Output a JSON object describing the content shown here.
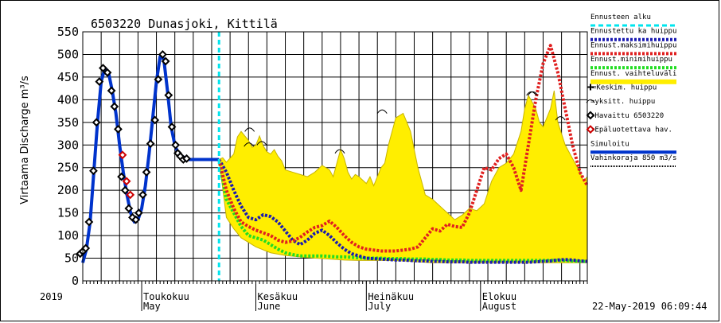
{
  "chart_data": {
    "type": "line",
    "title": "6503220 Dunasjoki, Kittilä",
    "ylabel": "Virtaama Discharge m³/s",
    "ylim": [
      0,
      550
    ],
    "yticks": [
      0,
      50,
      100,
      150,
      200,
      250,
      300,
      350,
      400,
      450,
      500,
      550
    ],
    "x_unit": "day-of-year 2019",
    "xlim": [
      105,
      242
    ],
    "year_label": "2019",
    "month_labels": [
      {
        "fi": "Toukokuu",
        "en": "May",
        "day": 121
      },
      {
        "fi": "Kesäkuu",
        "en": "June",
        "day": 152
      },
      {
        "fi": "Heinäkuu",
        "en": "July",
        "day": 182
      },
      {
        "fi": "Elokuu",
        "en": "August",
        "day": 213
      }
    ],
    "timestamp": "22-May-2019 06:09:44",
    "forecast_start_day": 142,
    "grid": true,
    "legend_position": "right",
    "colors": {
      "forecast_start": "#00e5ee",
      "forecast_mean": "#1a1ab0",
      "forecast_max": "#e02020",
      "forecast_min": "#22dd22",
      "range": "#ffee00",
      "range_edge": "#c8b400",
      "simulated": "#0033cc",
      "observed": "#000000",
      "unreliable": "#cc0000",
      "damage_limit": "#000000"
    },
    "legend": [
      {
        "key": "forecast_start",
        "label": "Ennusteen alku"
      },
      {
        "key": "forecast_mean",
        "label": "Ennustettu ka huippu"
      },
      {
        "key": "forecast_max",
        "label": "Ennust.maksimihuippu"
      },
      {
        "key": "forecast_min",
        "label": "Ennust.minimihuippu"
      },
      {
        "key": "range",
        "label": "Ennust. vaihteluväli"
      },
      {
        "key": "mean_peak",
        "label": "=Keskim. huippu"
      },
      {
        "key": "single_peak",
        "label": "=yksitt. huippu"
      },
      {
        "key": "observed",
        "label": "=Havaittu 6503220"
      },
      {
        "key": "unreliable",
        "label": "=Epäluotettava hav."
      },
      {
        "key": "simulated",
        "label": "Simuloitu"
      },
      {
        "key": "damage_limit",
        "label": "Vahinkoraja 850 m3/s"
      }
    ],
    "series": [
      {
        "name": "Simuloitu",
        "key": "simulated",
        "x": [
          105,
          106,
          107,
          108,
          109,
          110,
          111,
          112,
          113,
          114,
          115,
          116,
          117,
          118,
          119,
          120,
          121,
          122,
          123,
          124,
          125,
          126,
          127,
          128,
          129,
          130,
          131,
          132,
          133,
          134,
          135,
          136,
          137,
          138,
          139,
          140,
          141,
          142
        ],
        "y": [
          40,
          70,
          130,
          240,
          350,
          440,
          470,
          460,
          420,
          370,
          300,
          240,
          190,
          150,
          130,
          135,
          160,
          210,
          280,
          360,
          440,
          495,
          490,
          420,
          340,
          300,
          280,
          275,
          270,
          268,
          268,
          268,
          268,
          268,
          268,
          268,
          268,
          268
        ]
      },
      {
        "name": "=Havaittu 6503220",
        "key": "observed",
        "x": [
          104.3,
          105,
          105.8,
          106.7,
          107.9,
          108.7,
          109.5,
          110.5,
          111.7,
          112.8,
          113.6,
          114.6,
          115.5,
          116.5,
          117.5,
          118.5,
          119.4,
          120.2,
          121.3,
          122.3,
          123.4,
          124.6,
          125.5,
          126.7,
          127.5,
          128.3,
          129.2,
          130.2,
          130.8,
          131.5,
          132.3,
          133.2
        ],
        "y": [
          60,
          65,
          72,
          130,
          243,
          350,
          440,
          470,
          460,
          420,
          385,
          335,
          230,
          200,
          160,
          140,
          135,
          150,
          190,
          240,
          303,
          355,
          445,
          500,
          485,
          410,
          340,
          300,
          282,
          275,
          268,
          270
        ]
      },
      {
        "name": "=Epäluotettava hav.",
        "key": "unreliable",
        "x": [
          115.8,
          116.9,
          117.9
        ],
        "y": [
          278,
          220,
          190
        ]
      },
      {
        "name": "Ennustettu ka huippu",
        "key": "forecast_mean",
        "x": [
          142,
          144,
          146,
          148,
          150,
          152,
          154,
          156,
          158,
          160,
          162,
          164,
          166,
          168,
          170,
          172,
          174,
          176,
          178,
          180,
          182,
          184,
          186,
          188,
          190,
          192,
          194,
          196,
          198,
          200,
          202,
          204,
          206,
          208,
          210,
          212,
          214,
          216,
          218,
          220,
          222,
          224,
          226,
          228,
          230,
          232,
          234,
          236,
          238,
          240,
          242
        ],
        "y": [
          268,
          240,
          200,
          165,
          140,
          135,
          146,
          142,
          130,
          110,
          90,
          80,
          90,
          105,
          112,
          100,
          84,
          70,
          60,
          55,
          50,
          49,
          48,
          47,
          46,
          46,
          45,
          44,
          44,
          43,
          43,
          42,
          42,
          42,
          41,
          41,
          41,
          41,
          41,
          41,
          41,
          41,
          41,
          42,
          43,
          44,
          46,
          47,
          46,
          44,
          43
        ]
      },
      {
        "name": "Ennust.maksimihuippu",
        "key": "forecast_max",
        "x": [
          142,
          144,
          146,
          148,
          150,
          152,
          154,
          156,
          158,
          160,
          162,
          164,
          166,
          168,
          170,
          172,
          174,
          176,
          178,
          180,
          182,
          184,
          186,
          188,
          190,
          192,
          194,
          196,
          198,
          200,
          202,
          204,
          206,
          208,
          210,
          212,
          214,
          216,
          218,
          220,
          222,
          224,
          226,
          228,
          230,
          232,
          234,
          236,
          238,
          240,
          242
        ],
        "y": [
          268,
          200,
          160,
          130,
          120,
          112,
          106,
          100,
          90,
          85,
          88,
          96,
          108,
          118,
          122,
          132,
          118,
          100,
          85,
          75,
          70,
          68,
          66,
          66,
          66,
          68,
          70,
          75,
          95,
          115,
          110,
          125,
          120,
          118,
          150,
          200,
          250,
          245,
          270,
          280,
          250,
          200,
          300,
          400,
          480,
          520,
          460,
          380,
          300,
          240,
          210
        ]
      },
      {
        "name": "Ennust.minimihuippu",
        "key": "forecast_min",
        "x": [
          142,
          144,
          146,
          148,
          150,
          152,
          154,
          156,
          158,
          160,
          162,
          164,
          166,
          168,
          170,
          172,
          174,
          176,
          178,
          180,
          182,
          184,
          186,
          188,
          190,
          192,
          194,
          196,
          198,
          200,
          202,
          204,
          206,
          208,
          210,
          212,
          214,
          216,
          218,
          220,
          222,
          224,
          226,
          228,
          230,
          232,
          234,
          236,
          238,
          240,
          242
        ],
        "y": [
          268,
          180,
          150,
          120,
          100,
          95,
          90,
          80,
          70,
          62,
          58,
          55,
          55,
          55,
          55,
          54,
          53,
          53,
          52,
          51,
          50,
          50,
          50,
          49,
          49,
          49,
          48,
          48,
          48,
          47,
          47,
          46,
          46,
          46,
          45,
          45,
          45,
          45,
          45,
          45,
          45,
          45,
          45,
          45,
          45,
          45,
          45,
          45,
          44,
          43,
          43
        ]
      },
      {
        "name": "Ennust. vaihteluväli",
        "key": "range",
        "upper_x": [
          142,
          143,
          144,
          146,
          147,
          148,
          150,
          151,
          152,
          153,
          154,
          155,
          156,
          157,
          158,
          159,
          160,
          162,
          164,
          166,
          168,
          170,
          172,
          173,
          174,
          175,
          176,
          177,
          178,
          179,
          180,
          182,
          183,
          184,
          185,
          186,
          187,
          188,
          190,
          192,
          194,
          196,
          198,
          200,
          202,
          204,
          206,
          208,
          210,
          212,
          214,
          216,
          218,
          220,
          222,
          224,
          225,
          226,
          228,
          229,
          230,
          232,
          233,
          234,
          236,
          238,
          240,
          241,
          242
        ],
        "upper_y": [
          268,
          272,
          262,
          280,
          318,
          330,
          310,
          295,
          300,
          320,
          298,
          285,
          280,
          290,
          275,
          265,
          245,
          240,
          235,
          230,
          240,
          255,
          245,
          230,
          260,
          290,
          270,
          240,
          225,
          235,
          230,
          215,
          230,
          210,
          230,
          250,
          260,
          300,
          360,
          370,
          330,
          250,
          190,
          180,
          165,
          150,
          135,
          145,
          160,
          155,
          170,
          220,
          250,
          260,
          280,
          330,
          380,
          410,
          380,
          350,
          340,
          380,
          420,
          350,
          300,
          270,
          240,
          220,
          230
        ],
        "lower_x": [
          242,
          240,
          236,
          232,
          228,
          224,
          220,
          216,
          212,
          208,
          204,
          200,
          196,
          192,
          188,
          184,
          180,
          176,
          172,
          168,
          164,
          160,
          156,
          152,
          148,
          146,
          144,
          142
        ],
        "lower_y": [
          40,
          40,
          40,
          40,
          40,
          40,
          40,
          40,
          40,
          40,
          40,
          40,
          42,
          44,
          45,
          45,
          45,
          46,
          48,
          50,
          53,
          56,
          62,
          75,
          95,
          115,
          140,
          268
        ]
      },
      {
        "name": "=Keskim. huippu",
        "key": "mean_peak",
        "x": [
          186.3,
          226.8
        ],
        "y": [
          375,
          415
        ]
      },
      {
        "name": "=yksitt. huippu",
        "key": "single_peak",
        "x": [
          150.3,
          150.1,
          153.6,
          174.8,
          227.2,
          234.7
        ],
        "y": [
          335,
          302,
          305,
          287,
          415,
          360
        ]
      }
    ]
  }
}
